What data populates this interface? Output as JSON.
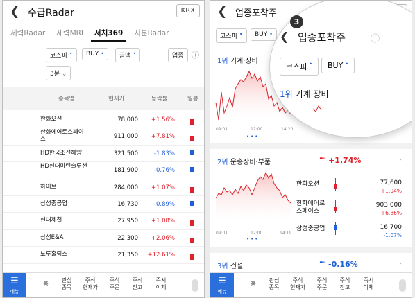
{
  "left": {
    "title": "수급Radar",
    "market": "KRX",
    "tabs": [
      "세력Radar",
      "세력MRI",
      "서치369",
      "지분Radar"
    ],
    "filters": {
      "market": "코스피",
      "side": "BUY",
      "metric": "금액",
      "sector": "업종",
      "period": "3분"
    },
    "columns": {
      "name": "종목명",
      "price": "현재가",
      "change": "등락률",
      "chart": "일봉"
    },
    "rows": [
      {
        "name": "한화오션",
        "price": "78,000",
        "change": "+1.56%",
        "dir": "up"
      },
      {
        "name": "한화에어로스페이스",
        "price": "911,000",
        "change": "+7.81%",
        "dir": "up"
      },
      {
        "name": "HD한국조선해양",
        "price": "321,500",
        "change": "-1.83%",
        "dir": "dn"
      },
      {
        "name": "HD현대마린솔루션",
        "price": "181,900",
        "change": "-0.76%",
        "dir": "dn"
      },
      {
        "name": "하이브",
        "price": "284,000",
        "change": "+1.07%",
        "dir": "up"
      },
      {
        "name": "삼성중공업",
        "price": "16,730",
        "change": "-0.89%",
        "dir": "dn"
      },
      {
        "name": "현대제철",
        "price": "27,950",
        "change": "+1.08%",
        "dir": "up"
      },
      {
        "name": "삼성E&A",
        "price": "22,300",
        "change": "+2.06%",
        "dir": "up"
      },
      {
        "name": "노루홀딩스",
        "price": "21,350",
        "change": "+12.61%",
        "dir": "up"
      }
    ]
  },
  "nav": {
    "menu": "메뉴",
    "home": "홈",
    "fav1": "관심",
    "fav2": "종목",
    "cur1": "주식",
    "cur2": "현재가",
    "ord1": "주식",
    "ord2": "주문",
    "bal1": "주식",
    "bal2": "잔고",
    "now1": "즉시",
    "now2": "이체"
  },
  "right": {
    "title": "업종포착주",
    "market": "KRX",
    "filters": {
      "market": "코스피",
      "side": "BUY"
    },
    "badge": "3",
    "sector1": {
      "rank": "1위",
      "name": "기계·장비",
      "t0": "09:01",
      "t1": "12:00",
      "t2": "14:20"
    },
    "sector2": {
      "rank": "2위",
      "name": "운송장비·부품",
      "change": "+1.74%",
      "t0": "09:01",
      "t1": "12:00",
      "t2": "14:19",
      "stocks": [
        {
          "name1": "한화오션",
          "name2": "",
          "price": "77,600",
          "change": "+1.04%",
          "dir": "up"
        },
        {
          "name1": "한화에어로",
          "name2": "스페이스",
          "price": "903,000",
          "change": "+6.86%",
          "dir": "up"
        },
        {
          "name1": "삼성중공업",
          "name2": "",
          "price": "16,700",
          "change": "-1.07%",
          "dir": "dn"
        }
      ]
    },
    "sector3": {
      "rank": "3위",
      "name": "건설",
      "change": "-0.16%"
    }
  },
  "colors": {
    "up": "#e0202a",
    "down": "#1f5fd6",
    "accent": "#2a6fdb"
  }
}
